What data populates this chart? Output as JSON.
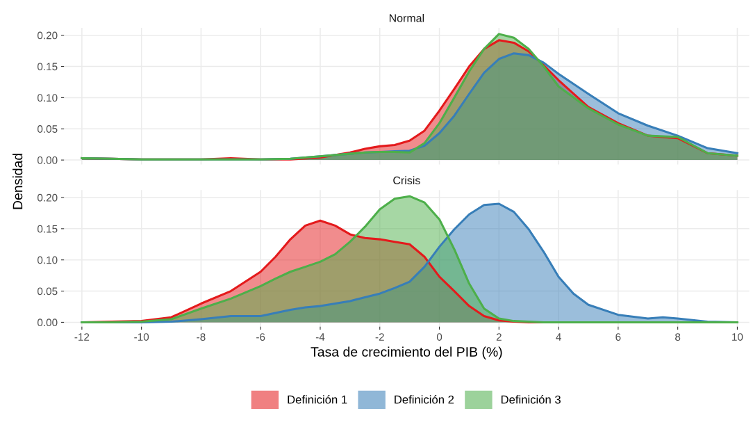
{
  "chart_data": [
    {
      "type": "area",
      "title": "Normal",
      "ylabel": "Densidad",
      "tick_labels": "y",
      "grid": true,
      "legend": "bottom",
      "x": [
        -12,
        -11,
        -10,
        -9,
        -8,
        -7,
        -6,
        -5,
        -4,
        -3,
        -2.5,
        -2,
        -1.5,
        -1,
        -0.5,
        0,
        0.5,
        1,
        1.5,
        2,
        2.5,
        3,
        3.5,
        4,
        5,
        6,
        7,
        8,
        9,
        10
      ],
      "xlim": [
        -12.6,
        10.4
      ],
      "xticks": [
        -12,
        -10,
        -8,
        -6,
        -4,
        -2,
        0,
        2,
        4,
        6,
        8,
        10
      ],
      "ylim": [
        -0.007,
        0.212
      ],
      "yticks": [
        {
          "value": 0,
          "label": "0.00"
        },
        {
          "value": 0.05,
          "label": "0.05"
        },
        {
          "value": 0.1,
          "label": "0.10"
        },
        {
          "value": 0.15,
          "label": "0.15"
        },
        {
          "value": 0.2,
          "label": "0.20"
        }
      ],
      "series": [
        {
          "name": "Definición 1",
          "color": "#e41a1c",
          "values": [
            0.003,
            0.002,
            0.001,
            0.001,
            0.001,
            0.003,
            0.001,
            0.001,
            0.004,
            0.012,
            0.018,
            0.022,
            0.024,
            0.031,
            0.047,
            0.079,
            0.114,
            0.15,
            0.178,
            0.192,
            0.188,
            0.174,
            0.152,
            0.128,
            0.085,
            0.059,
            0.039,
            0.035,
            0.011,
            0.007
          ]
        },
        {
          "name": "Definición 2",
          "color": "#377eb8",
          "values": [
            0.003,
            0.002,
            0.001,
            0.001,
            0.001,
            0.001,
            0.001,
            0.002,
            0.006,
            0.01,
            0.012,
            0.013,
            0.014,
            0.015,
            0.023,
            0.043,
            0.071,
            0.106,
            0.14,
            0.162,
            0.171,
            0.168,
            0.156,
            0.138,
            0.106,
            0.075,
            0.055,
            0.039,
            0.019,
            0.011
          ]
        },
        {
          "name": "Definición 3",
          "color": "#4daf4a",
          "values": [
            0.003,
            0.002,
            0.001,
            0.001,
            0.001,
            0.001,
            0.001,
            0.002,
            0.006,
            0.01,
            0.012,
            0.013,
            0.013,
            0.012,
            0.027,
            0.059,
            0.1,
            0.142,
            0.178,
            0.202,
            0.196,
            0.178,
            0.15,
            0.118,
            0.083,
            0.057,
            0.039,
            0.037,
            0.011,
            0.007
          ]
        }
      ]
    },
    {
      "type": "area",
      "title": "Crisis",
      "xlabel": "Tasa de crecimiento del PIB (%)",
      "grid": true,
      "x": [
        -12,
        -11,
        -10,
        -9,
        -8,
        -7,
        -6,
        -5.5,
        -5,
        -4.5,
        -4,
        -3.5,
        -3,
        -2.5,
        -2,
        -1.5,
        -1,
        -0.5,
        0,
        0.5,
        1,
        1.5,
        2,
        2.5,
        3,
        3.5,
        4,
        4.5,
        5,
        6,
        7,
        7.5,
        8,
        9,
        10
      ],
      "xlim": [
        -12.6,
        10.4
      ],
      "xticks": [
        -12,
        -10,
        -8,
        -6,
        -4,
        -2,
        0,
        2,
        4,
        6,
        8,
        10
      ],
      "ylim": [
        -0.007,
        0.212
      ],
      "yticks": [
        {
          "value": 0,
          "label": "0.00"
        },
        {
          "value": 0.05,
          "label": "0.05"
        },
        {
          "value": 0.1,
          "label": "0.10"
        },
        {
          "value": 0.15,
          "label": "0.15"
        },
        {
          "value": 0.2,
          "label": "0.20"
        }
      ],
      "series": [
        {
          "color": "#e41a1c",
          "values": [
            0,
            0.001,
            0.002,
            0.008,
            0.03,
            0.05,
            0.081,
            0.105,
            0.133,
            0.155,
            0.163,
            0.155,
            0.141,
            0.135,
            0.133,
            0.129,
            0.125,
            0.105,
            0.073,
            0.05,
            0.026,
            0.01,
            0.003,
            0.001,
            0,
            0,
            0,
            0,
            0,
            0,
            0,
            0,
            0,
            0,
            0
          ]
        },
        {
          "color": "#377eb8",
          "values": [
            0,
            0,
            0,
            0.001,
            0.005,
            0.01,
            0.01,
            0.015,
            0.02,
            0.024,
            0.026,
            0.03,
            0.034,
            0.04,
            0.046,
            0.055,
            0.065,
            0.089,
            0.121,
            0.149,
            0.173,
            0.188,
            0.19,
            0.177,
            0.149,
            0.113,
            0.073,
            0.046,
            0.028,
            0.012,
            0.006,
            0.008,
            0.006,
            0.001,
            0
          ]
        },
        {
          "color": "#4daf4a",
          "values": [
            0,
            0,
            0.001,
            0.005,
            0.022,
            0.038,
            0.058,
            0.07,
            0.081,
            0.089,
            0.097,
            0.109,
            0.129,
            0.153,
            0.181,
            0.198,
            0.202,
            0.192,
            0.165,
            0.117,
            0.062,
            0.022,
            0.006,
            0.002,
            0.001,
            0,
            0,
            0,
            0,
            0,
            0,
            0,
            0,
            0,
            0
          ]
        }
      ]
    }
  ]
}
